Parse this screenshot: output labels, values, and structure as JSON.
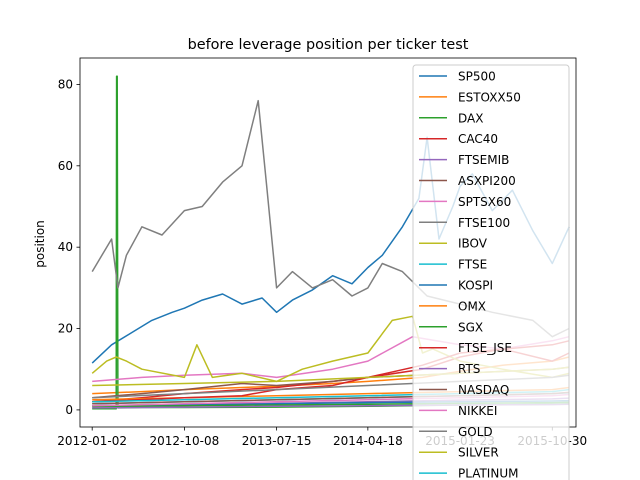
{
  "chart_data": {
    "type": "line",
    "title": "before leverage position per ticker test",
    "xlabel": "",
    "ylabel": "position",
    "xlim": [
      "2011-11-26",
      "2016-01-10"
    ],
    "ylim": [
      -4.2,
      86.5
    ],
    "yticks": [
      0,
      20,
      40,
      60,
      80
    ],
    "xticks": [
      "2012-01-02",
      "2012-10-08",
      "2013-07-15",
      "2014-04-18",
      "2015-01-23",
      "2015-10-30"
    ],
    "grid": false,
    "legend_position": "top-right",
    "series": [
      {
        "name": "SP500",
        "color": "#1f77b4",
        "x": [
          "2012-01-02",
          "2012-03-01",
          "2012-05-01",
          "2012-07-01",
          "2012-09-01",
          "2012-10-08",
          "2012-12-01",
          "2013-02-01",
          "2013-04-01",
          "2013-06-01",
          "2013-07-15",
          "2013-09-01",
          "2013-11-01",
          "2014-01-01",
          "2014-03-01",
          "2014-04-18",
          "2014-06-01",
          "2014-08-01",
          "2014-09-20",
          "2014-10-15",
          "2014-11-20",
          "2015-01-01",
          "2015-01-23",
          "2015-03-01",
          "2015-05-01",
          "2015-07-01",
          "2015-09-01",
          "2015-10-30",
          "2015-12-20"
        ],
        "values": [
          11.5,
          16,
          19,
          22,
          24,
          25,
          27,
          28.5,
          26,
          27.5,
          24,
          27,
          29.5,
          33,
          31,
          35,
          38,
          45,
          52,
          67,
          42,
          50,
          55,
          58,
          49,
          54,
          44,
          36,
          45
        ]
      },
      {
        "name": "ESTOXX50",
        "color": "#ff7f0e",
        "x": [
          "2012-01-02",
          "2012-06-01",
          "2012-10-08",
          "2013-04-01",
          "2013-07-15",
          "2014-01-01",
          "2014-04-18",
          "2014-10-01",
          "2015-01-23",
          "2015-06-01",
          "2015-10-30",
          "2015-12-20"
        ],
        "values": [
          4,
          4.5,
          5,
          5.5,
          5.8,
          6.5,
          7,
          8,
          9.5,
          11,
          12,
          13
        ]
      },
      {
        "name": "DAX",
        "color": "#2ca02c",
        "x": [
          "2012-01-02",
          "2012-03-15",
          "2012-03-16",
          "2012-03-18",
          "2012-03-20",
          "2012-06-01",
          "2012-10-08",
          "2013-07-15",
          "2014-04-18",
          "2015-01-23",
          "2015-10-30",
          "2015-12-20"
        ],
        "values": [
          0.3,
          0.3,
          82,
          82,
          0.5,
          0.6,
          0.6,
          0.7,
          0.9,
          1.2,
          1.4,
          1.5
        ]
      },
      {
        "name": "CAC40",
        "color": "#d62728",
        "x": [
          "2012-01-02",
          "2012-06-01",
          "2012-10-08",
          "2013-04-01",
          "2013-07-15",
          "2014-01-01",
          "2014-04-18",
          "2014-10-01",
          "2015-01-23",
          "2015-06-01",
          "2015-10-30",
          "2015-12-20"
        ],
        "values": [
          2,
          3,
          4,
          5,
          5.5,
          7,
          8,
          10,
          13,
          15,
          12,
          14
        ]
      },
      {
        "name": "FTSEMIB",
        "color": "#9467bd",
        "x": [
          "2012-01-02",
          "2012-10-08",
          "2013-07-15",
          "2014-04-18",
          "2015-01-23",
          "2015-10-30",
          "2015-12-20"
        ],
        "values": [
          1,
          1.3,
          1.6,
          2,
          2.4,
          2.7,
          2.9
        ]
      },
      {
        "name": "ASXPI200",
        "color": "#8c564b",
        "x": [
          "2012-01-02",
          "2012-06-01",
          "2012-10-08",
          "2013-04-01",
          "2013-07-15",
          "2014-01-01",
          "2014-04-18",
          "2015-01-23",
          "2015-10-30",
          "2015-12-20"
        ],
        "values": [
          3,
          4,
          5,
          6.5,
          6,
          7,
          8,
          9,
          10,
          10.5
        ]
      },
      {
        "name": "SPTSX60",
        "color": "#e377c2",
        "x": [
          "2012-01-02",
          "2012-06-01",
          "2012-10-08",
          "2013-04-01",
          "2013-07-15",
          "2014-01-01",
          "2014-04-18",
          "2014-09-01",
          "2015-01-23",
          "2015-06-01",
          "2015-10-30",
          "2015-12-20"
        ],
        "values": [
          7,
          8,
          8.5,
          9,
          8,
          10,
          12,
          18,
          16,
          15,
          17,
          18
        ]
      },
      {
        "name": "FTSE100",
        "color": "#7f7f7f",
        "x": [
          "2012-01-02",
          "2012-02-15",
          "2012-03-01",
          "2012-03-20",
          "2012-04-15",
          "2012-06-01",
          "2012-08-01",
          "2012-10-08",
          "2012-12-01",
          "2013-02-01",
          "2013-04-01",
          "2013-05-20",
          "2013-06-15",
          "2013-07-15",
          "2013-09-01",
          "2013-11-01",
          "2014-01-01",
          "2014-03-01",
          "2014-04-18",
          "2014-06-01",
          "2014-08-01",
          "2014-10-15",
          "2015-01-23",
          "2015-05-01",
          "2015-09-01",
          "2015-10-30",
          "2015-12-20"
        ],
        "values": [
          34,
          40,
          42,
          30,
          38,
          45,
          43,
          49,
          50,
          56,
          60,
          76,
          55,
          30,
          34,
          30,
          32,
          28,
          30,
          36,
          34,
          28,
          26,
          24,
          22,
          18,
          20
        ]
      },
      {
        "name": "IBOV",
        "color": "#bcbd22",
        "x": [
          "2012-01-02",
          "2012-02-15",
          "2012-03-15",
          "2012-04-15",
          "2012-06-01",
          "2012-10-08",
          "2012-11-15",
          "2013-01-01",
          "2013-04-01",
          "2013-07-15",
          "2013-10-01",
          "2014-01-01",
          "2014-04-18",
          "2014-07-01",
          "2014-09-01",
          "2014-10-01",
          "2014-11-01",
          "2015-01-23",
          "2015-06-01",
          "2015-10-30",
          "2015-12-20"
        ],
        "values": [
          9,
          12,
          13,
          12,
          10,
          8,
          16,
          8,
          9,
          7,
          10,
          12,
          14,
          22,
          23,
          14,
          15,
          12,
          10,
          8,
          9
        ]
      },
      {
        "name": "FTSE",
        "color": "#17becf",
        "x": [
          "2012-01-02",
          "2012-10-08",
          "2013-07-15",
          "2014-04-18",
          "2015-01-23",
          "2015-10-30",
          "2015-12-20"
        ],
        "values": [
          1.5,
          2,
          2.5,
          3,
          3.5,
          4,
          4.2
        ]
      },
      {
        "name": "KOSPI",
        "color": "#1f77b4",
        "x": [
          "2012-01-02",
          "2012-10-08",
          "2013-07-15",
          "2014-04-18",
          "2015-01-23",
          "2015-10-30",
          "2015-12-20"
        ],
        "values": [
          1,
          1.2,
          1.5,
          1.8,
          2,
          2.2,
          2.3
        ]
      },
      {
        "name": "OMX",
        "color": "#ff7f0e",
        "x": [
          "2012-01-02",
          "2012-10-08",
          "2013-07-15",
          "2014-04-18",
          "2015-01-23",
          "2015-10-30",
          "2015-12-20"
        ],
        "values": [
          2.5,
          3,
          3.5,
          4,
          4.5,
          5,
          5.5
        ]
      },
      {
        "name": "SGX",
        "color": "#2ca02c",
        "x": [
          "2012-01-02",
          "2012-10-08",
          "2013-07-15",
          "2014-04-18",
          "2015-01-23",
          "2015-10-30",
          "2015-12-20"
        ],
        "values": [
          0.8,
          1,
          1.2,
          1.4,
          1.6,
          1.8,
          1.9
        ]
      },
      {
        "name": "FTSE_JSE",
        "color": "#d62728",
        "x": [
          "2012-01-02",
          "2012-10-08",
          "2013-04-01",
          "2013-07-15",
          "2014-01-01",
          "2014-04-18",
          "2014-10-01",
          "2015-01-23",
          "2015-10-30",
          "2015-12-20"
        ],
        "values": [
          2,
          3,
          3.5,
          5,
          6,
          8,
          11,
          14,
          16,
          17
        ]
      },
      {
        "name": "RTS",
        "color": "#9467bd",
        "x": [
          "2012-01-02",
          "2012-10-08",
          "2013-07-15",
          "2014-04-18",
          "2015-01-23",
          "2015-10-30",
          "2015-12-20"
        ],
        "values": [
          0.5,
          0.7,
          0.9,
          1,
          1.2,
          1.3,
          1.4
        ]
      },
      {
        "name": "NASDAQ",
        "color": "#8c564b",
        "x": [
          "2012-01-02",
          "2012-10-08",
          "2013-07-15",
          "2014-04-18",
          "2015-01-23",
          "2015-10-30",
          "2015-12-20"
        ],
        "values": [
          1.5,
          2,
          2.5,
          3,
          3.5,
          4,
          4.3
        ]
      },
      {
        "name": "NIKKEI",
        "color": "#e377c2",
        "x": [
          "2012-01-02",
          "2012-10-08",
          "2013-07-15",
          "2014-04-18",
          "2015-01-23",
          "2015-10-30",
          "2015-12-20"
        ],
        "values": [
          1,
          1.5,
          2,
          2.5,
          3,
          3.5,
          3.8
        ]
      },
      {
        "name": "GOLD",
        "color": "#7f7f7f",
        "x": [
          "2012-01-02",
          "2012-10-08",
          "2013-07-15",
          "2014-04-18",
          "2015-01-23",
          "2015-10-30",
          "2015-12-20"
        ],
        "values": [
          3,
          4,
          5,
          6,
          7,
          8,
          8.5
        ]
      },
      {
        "name": "SILVER",
        "color": "#bcbd22",
        "x": [
          "2012-01-02",
          "2012-10-08",
          "2013-07-15",
          "2014-04-18",
          "2015-01-23",
          "2015-10-30",
          "2015-12-20"
        ],
        "values": [
          6,
          6.5,
          7,
          8,
          9,
          10,
          10.5
        ]
      },
      {
        "name": "PLATINUM",
        "color": "#17becf",
        "x": [
          "2012-01-02",
          "2012-10-08",
          "2013-07-15",
          "2014-04-18",
          "2015-01-23",
          "2015-10-30",
          "2015-12-20"
        ],
        "values": [
          2,
          2.5,
          3,
          3.5,
          4,
          4.5,
          5
        ]
      }
    ]
  }
}
